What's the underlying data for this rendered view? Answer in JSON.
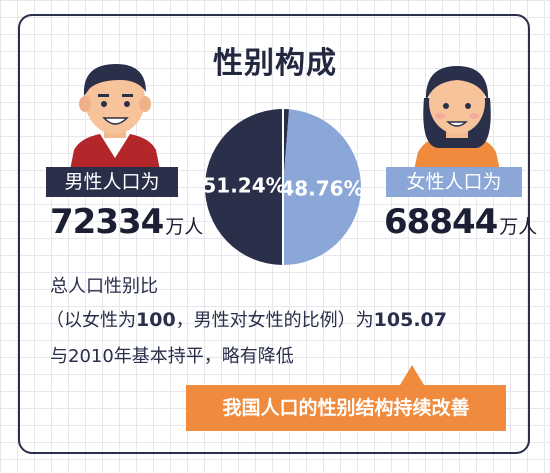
{
  "title": "性别构成",
  "male": {
    "label": "男性人口为",
    "count": "72334",
    "unit": "万人"
  },
  "female": {
    "label": "女性人口为",
    "count": "68844",
    "unit": "万人"
  },
  "ratio_text": {
    "line1": "总人口性别比",
    "line2_prefix": "（以女性为",
    "line2_base": "100",
    "line2_mid": "，男性对女性的比例）为",
    "line2_value": "105.07",
    "line3": "与2010年基本持平，略有降低"
  },
  "banner": "我国人口的性别结构持续改善",
  "colors": {
    "male": "#2a2f4a",
    "female": "#8aa7d8",
    "accent": "#f08a3c"
  },
  "chart_data": {
    "type": "pie",
    "title": "性别构成",
    "slices": [
      {
        "label": "51.24%",
        "value": 51.24,
        "color": "#2a2f4a"
      },
      {
        "label": "48.76%",
        "value": 48.76,
        "color": "#8aa7d8"
      }
    ]
  }
}
